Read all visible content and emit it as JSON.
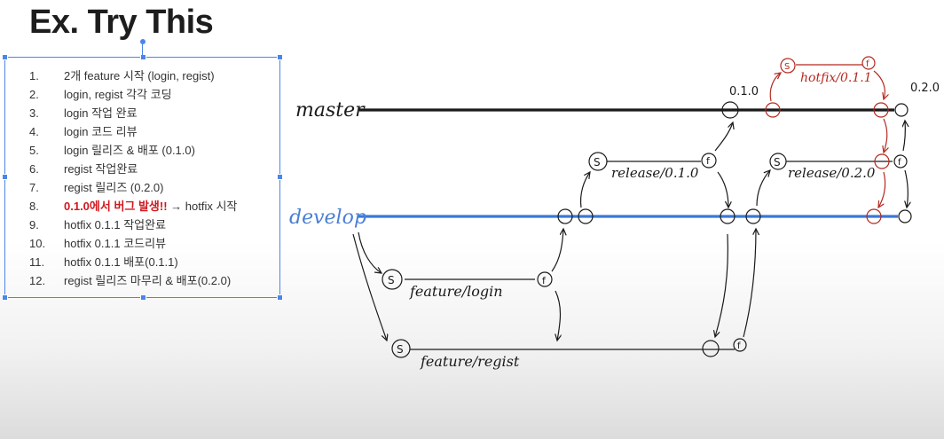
{
  "title": "Ex. Try This",
  "steps": [
    {
      "num": "1.",
      "text": "2개 feature 시작 (login, regist)"
    },
    {
      "num": "2.",
      "text": "login, regist 각각 코딩"
    },
    {
      "num": "3.",
      "text": "login 작업 완료"
    },
    {
      "num": "4.",
      "text": "login 코드 리뷰"
    },
    {
      "num": "5.",
      "text": "login 릴리즈 & 배포 (0.1.0)"
    },
    {
      "num": "6.",
      "text": "regist 작업완료"
    },
    {
      "num": "7.",
      "text": "regist 릴리즈 (0.2.0)"
    },
    {
      "num": "8.",
      "highlight": "0.1.0에서 버그 발생!!",
      "text": " → hotfix 시작"
    },
    {
      "num": "9.",
      "text": "hotfix 0.1.1 작업완료"
    },
    {
      "num": "10.",
      "text": "hotfix 0.1.1 코드리뷰"
    },
    {
      "num": "11.",
      "text": "hotfix 0.1.1 배포(0.1.1)"
    },
    {
      "num": "12.",
      "text": "regist 릴리즈 마무리 & 배포(0.2.0)"
    }
  ],
  "diagram": {
    "branches": {
      "master": "master",
      "develop": "develop",
      "feature_login": "feature/login",
      "feature_regist": "feature/regist",
      "release_010": "release/0.1.0",
      "release_020": "release/0.2.0",
      "hotfix": "hotfix/0.1.1"
    },
    "tags": {
      "v010": "0.1.0",
      "v020": "0.2.0"
    },
    "markers": {
      "start": "S",
      "finish": "f"
    },
    "colors": {
      "ink": "#1a1a1a",
      "develop": "#3a78d8",
      "develop_label": "#4a7fd4",
      "hotfix": "#b5281f",
      "selection": "#4a86e8"
    }
  }
}
